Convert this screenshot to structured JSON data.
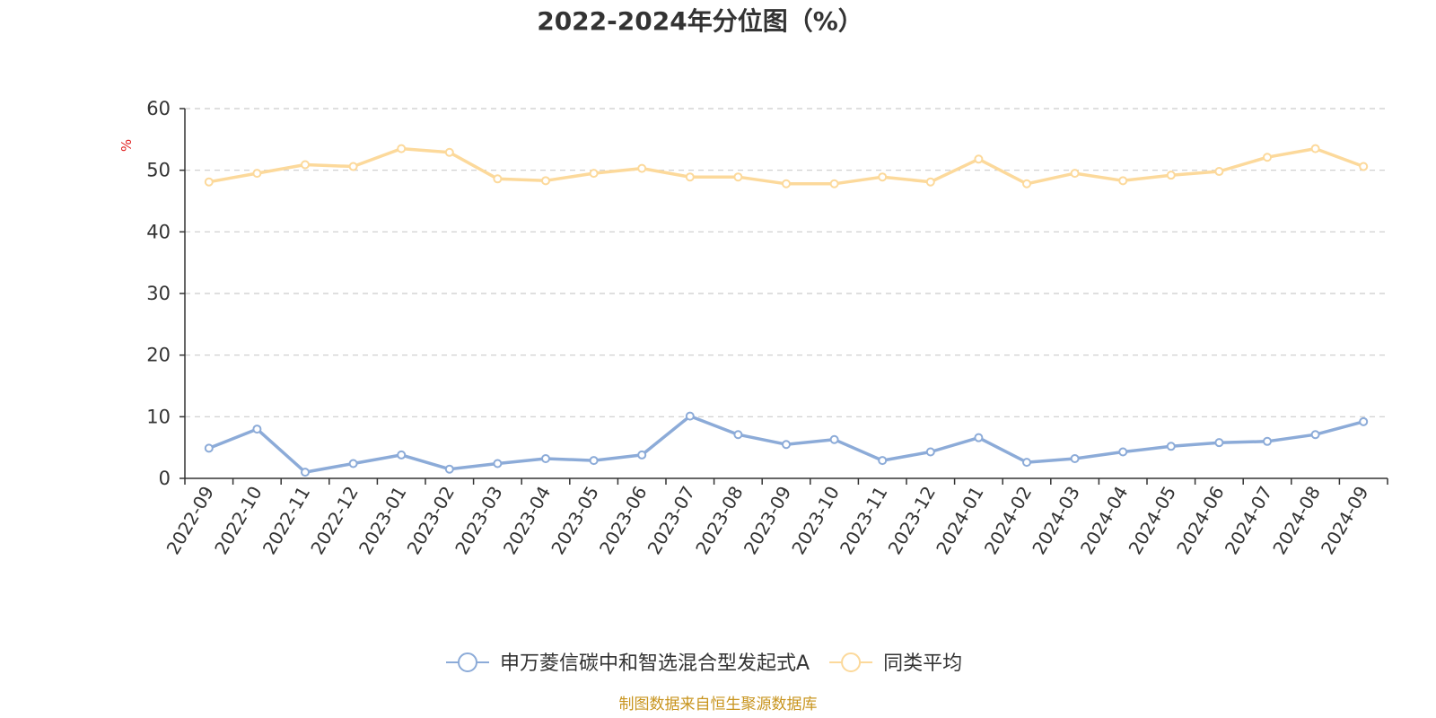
{
  "chart_data": {
    "type": "line",
    "title": "2022-2024年分位图（%）",
    "ylabel": "%",
    "xlabel": "",
    "ylim": [
      0,
      60
    ],
    "yticks": [
      0,
      10,
      20,
      30,
      40,
      50,
      60
    ],
    "grid": true,
    "legend_position": "bottom-center",
    "categories": [
      "2022-09",
      "2022-10",
      "2022-11",
      "2022-12",
      "2023-01",
      "2023-02",
      "2023-03",
      "2023-04",
      "2023-05",
      "2023-06",
      "2023-07",
      "2023-08",
      "2023-09",
      "2023-10",
      "2023-11",
      "2023-12",
      "2024-01",
      "2024-02",
      "2024-03",
      "2024-04",
      "2024-05",
      "2024-06",
      "2024-07",
      "2024-08",
      "2024-09"
    ],
    "series": [
      {
        "name": "申万菱信碳中和智选混合型发起式A",
        "color": "#8cabd8",
        "values": [
          4.9,
          8.0,
          1.0,
          2.4,
          3.8,
          1.5,
          2.4,
          3.2,
          2.9,
          3.8,
          10.1,
          7.1,
          5.5,
          6.3,
          2.9,
          4.3,
          6.6,
          2.6,
          3.2,
          4.3,
          5.2,
          5.8,
          6.0,
          7.1,
          9.2
        ]
      },
      {
        "name": "同类平均",
        "color": "#fcd99b",
        "values": [
          48.1,
          49.5,
          50.9,
          50.6,
          53.5,
          52.9,
          48.6,
          48.3,
          49.5,
          50.3,
          48.9,
          48.9,
          47.8,
          47.8,
          48.9,
          48.1,
          51.8,
          47.8,
          49.5,
          48.3,
          49.2,
          49.8,
          52.1,
          53.5,
          50.6
        ]
      }
    ],
    "source_note": "制图数据来自恒生聚源数据库"
  }
}
